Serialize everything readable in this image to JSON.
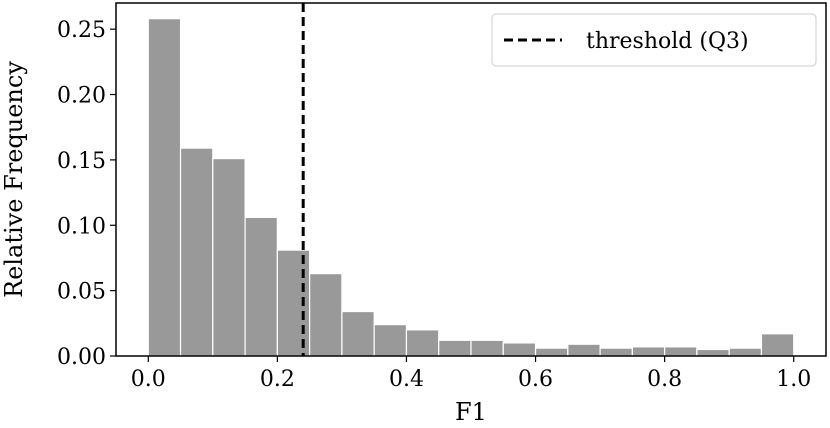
{
  "chart_data": {
    "type": "bar",
    "subtype": "histogram",
    "bin_edges": [
      0.0,
      0.05,
      0.1,
      0.15,
      0.2,
      0.25,
      0.3,
      0.35,
      0.4,
      0.45,
      0.5,
      0.55,
      0.6,
      0.65,
      0.7,
      0.75,
      0.8,
      0.85,
      0.9,
      0.95,
      1.0
    ],
    "values": [
      0.258,
      0.159,
      0.151,
      0.106,
      0.081,
      0.063,
      0.034,
      0.024,
      0.02,
      0.012,
      0.012,
      0.01,
      0.006,
      0.009,
      0.006,
      0.007,
      0.007,
      0.005,
      0.006,
      0.017
    ],
    "bar_color": "#999999",
    "xlabel": "F1",
    "ylabel": "Relative Frequency",
    "xlim": [
      -0.05,
      1.05
    ],
    "ylim": [
      0,
      0.27
    ],
    "xticks": [
      0.0,
      0.2,
      0.4,
      0.6,
      0.8,
      1.0
    ],
    "xtick_labels": [
      "0.0",
      "0.2",
      "0.4",
      "0.6",
      "0.8",
      "1.0"
    ],
    "yticks": [
      0.0,
      0.05,
      0.1,
      0.15,
      0.2,
      0.25
    ],
    "ytick_labels": [
      "0.00",
      "0.05",
      "0.10",
      "0.15",
      "0.20",
      "0.25"
    ],
    "threshold": {
      "x": 0.24,
      "label": "threshold (Q3)",
      "color": "#000000",
      "style": "dashed"
    },
    "legend_position": "top-right",
    "grid": false
  }
}
